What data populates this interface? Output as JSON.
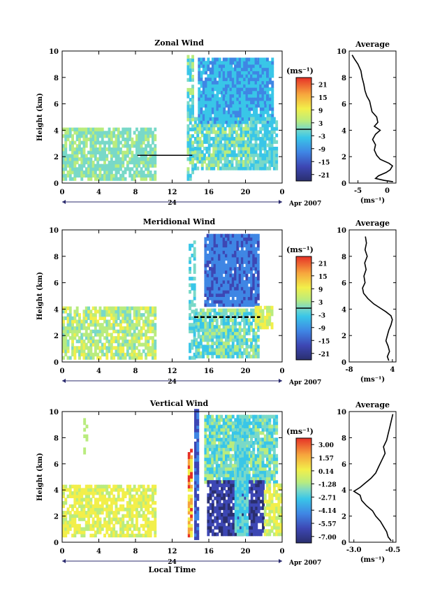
{
  "chart_data": [
    {
      "type": "heatmap",
      "title": "Zonal Wind",
      "ylabel": "Height (km)",
      "ylim": [
        0,
        10
      ],
      "yticks": [
        "0",
        "2",
        "4",
        "6",
        "8",
        "10"
      ],
      "xticks": [
        "0",
        "4",
        "8",
        "12",
        "16",
        "20",
        "0"
      ],
      "date_label": "24",
      "month_label": "Apr 2007",
      "colorbar": {
        "unit": "(ms⁻¹)",
        "ticks": [
          "21",
          "15",
          "9",
          "3",
          "-3",
          "-9",
          "-15",
          "-21"
        ],
        "range": [
          -24,
          24
        ]
      },
      "average": {
        "title": "Average",
        "xlabel": "(ms⁻¹)",
        "xticks": [
          "-5",
          "0"
        ],
        "xlim": [
          -6.5,
          1.5
        ],
        "profile": [
          {
            "h": 0.1,
            "v": 1.0
          },
          {
            "h": 0.2,
            "v": -0.5
          },
          {
            "h": 0.35,
            "v": -2.0
          },
          {
            "h": 0.55,
            "v": -1.5
          },
          {
            "h": 0.8,
            "v": -0.2
          },
          {
            "h": 1.0,
            "v": 0.5
          },
          {
            "h": 1.3,
            "v": 0.9
          },
          {
            "h": 1.5,
            "v": 0.3
          },
          {
            "h": 1.8,
            "v": -1.2
          },
          {
            "h": 2.1,
            "v": -1.8
          },
          {
            "h": 2.5,
            "v": -2.2
          },
          {
            "h": 2.9,
            "v": -2.0
          },
          {
            "h": 3.3,
            "v": -2.5
          },
          {
            "h": 3.7,
            "v": -2.0
          },
          {
            "h": 4.0,
            "v": -1.2
          },
          {
            "h": 4.3,
            "v": -2.2
          },
          {
            "h": 4.6,
            "v": -1.6
          },
          {
            "h": 5.0,
            "v": -1.8
          },
          {
            "h": 5.4,
            "v": -2.6
          },
          {
            "h": 5.8,
            "v": -2.8
          },
          {
            "h": 6.2,
            "v": -3.0
          },
          {
            "h": 6.6,
            "v": -3.5
          },
          {
            "h": 7.0,
            "v": -3.8
          },
          {
            "h": 7.5,
            "v": -4.0
          },
          {
            "h": 8.0,
            "v": -4.3
          },
          {
            "h": 8.5,
            "v": -4.5
          },
          {
            "h": 9.0,
            "v": -5.0
          },
          {
            "h": 9.4,
            "v": -5.6
          },
          {
            "h": 9.7,
            "v": -6.0
          }
        ]
      }
    },
    {
      "type": "heatmap",
      "title": "Meridional Wind",
      "ylabel": "Height (km)",
      "ylim": [
        0,
        10
      ],
      "yticks": [
        "0",
        "2",
        "4",
        "6",
        "8",
        "10"
      ],
      "xticks": [
        "0",
        "4",
        "8",
        "12",
        "16",
        "20",
        "0"
      ],
      "date_label": "24",
      "month_label": "Apr 2007",
      "colorbar": {
        "unit": "(ms⁻¹)",
        "ticks": [
          "21",
          "15",
          "9",
          "3",
          "-3",
          "-9",
          "-15",
          "-21"
        ],
        "range": [
          -24,
          24
        ]
      },
      "average": {
        "title": "Average",
        "xlabel": "(ms⁻¹)",
        "xticks": [
          "-8",
          "4"
        ],
        "xlim": [
          -8,
          5
        ],
        "profile": [
          {
            "h": 0.1,
            "v": 3.0
          },
          {
            "h": 0.4,
            "v": 2.6
          },
          {
            "h": 0.8,
            "v": 3.2
          },
          {
            "h": 1.2,
            "v": 2.8
          },
          {
            "h": 1.6,
            "v": 2.2
          },
          {
            "h": 2.0,
            "v": 2.6
          },
          {
            "h": 2.4,
            "v": 3.0
          },
          {
            "h": 2.8,
            "v": 3.6
          },
          {
            "h": 3.2,
            "v": 4.0
          },
          {
            "h": 3.5,
            "v": 3.6
          },
          {
            "h": 3.8,
            "v": 2.2
          },
          {
            "h": 4.1,
            "v": 0.5
          },
          {
            "h": 4.4,
            "v": -1.2
          },
          {
            "h": 4.8,
            "v": -2.8
          },
          {
            "h": 5.2,
            "v": -4.0
          },
          {
            "h": 5.6,
            "v": -4.3
          },
          {
            "h": 6.0,
            "v": -3.6
          },
          {
            "h": 6.5,
            "v": -3.9
          },
          {
            "h": 7.0,
            "v": -3.3
          },
          {
            "h": 7.5,
            "v": -3.7
          },
          {
            "h": 8.0,
            "v": -3.0
          },
          {
            "h": 8.5,
            "v": -3.6
          },
          {
            "h": 9.0,
            "v": -3.2
          },
          {
            "h": 9.5,
            "v": -3.5
          }
        ]
      }
    },
    {
      "type": "heatmap",
      "title": "Vertical Wind",
      "ylabel": "Height (km)",
      "xlabel": "Local Time",
      "ylim": [
        0,
        10
      ],
      "yticks": [
        "0",
        "2",
        "4",
        "6",
        "8",
        "10"
      ],
      "xticks": [
        "0",
        "4",
        "8",
        "12",
        "16",
        "20",
        "0"
      ],
      "date_label": "24",
      "month_label": "Apr 2007",
      "colorbar": {
        "unit": "(ms⁻¹)",
        "ticks": [
          "3.00",
          "1.57",
          "0.14",
          "-1.28",
          "-2.71",
          "-4.14",
          "-5.57",
          "-7.00"
        ],
        "range": [
          -7.7,
          3.7
        ]
      },
      "average": {
        "title": "Average",
        "xlabel": "(ms⁻¹)",
        "xticks": [
          "-3.0",
          "-0.5"
        ],
        "xlim": [
          -3.3,
          -0.3
        ],
        "profile": [
          {
            "h": 0.1,
            "v": -0.6
          },
          {
            "h": 0.4,
            "v": -0.8
          },
          {
            "h": 0.8,
            "v": -0.9
          },
          {
            "h": 1.2,
            "v": -1.1
          },
          {
            "h": 1.6,
            "v": -1.3
          },
          {
            "h": 2.0,
            "v": -1.6
          },
          {
            "h": 2.4,
            "v": -1.8
          },
          {
            "h": 2.8,
            "v": -2.2
          },
          {
            "h": 3.2,
            "v": -2.5
          },
          {
            "h": 3.6,
            "v": -2.6
          },
          {
            "h": 3.9,
            "v": -3.0
          },
          {
            "h": 4.2,
            "v": -2.6
          },
          {
            "h": 4.5,
            "v": -2.3
          },
          {
            "h": 4.9,
            "v": -1.9
          },
          {
            "h": 5.3,
            "v": -1.6
          },
          {
            "h": 5.8,
            "v": -1.4
          },
          {
            "h": 6.3,
            "v": -1.2
          },
          {
            "h": 6.8,
            "v": -1.0
          },
          {
            "h": 7.3,
            "v": -1.1
          },
          {
            "h": 7.8,
            "v": -0.9
          },
          {
            "h": 8.3,
            "v": -0.8
          },
          {
            "h": 8.8,
            "v": -0.7
          },
          {
            "h": 9.3,
            "v": -0.6
          },
          {
            "h": 9.8,
            "v": -0.5
          }
        ]
      }
    }
  ]
}
